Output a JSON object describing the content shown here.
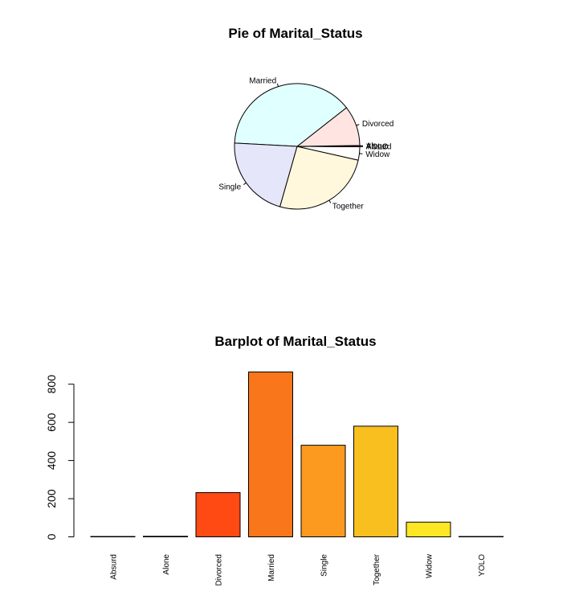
{
  "chart_data": [
    {
      "type": "pie",
      "title": "Pie of Marital_Status",
      "categories": [
        "Absurd",
        "Alone",
        "Divorced",
        "Married",
        "Single",
        "Together",
        "Widow",
        "YOLO"
      ],
      "values": [
        2,
        3,
        232,
        864,
        480,
        580,
        77,
        2
      ],
      "colors": [
        "#f0fff0",
        "#f8f8ff",
        "#ffe4e1",
        "#e0ffff",
        "#e6e6fa",
        "#fff8dc",
        "#ffffff",
        "#fffff0"
      ]
    },
    {
      "type": "bar",
      "title": "Barplot of Marital_Status",
      "categories": [
        "Absurd",
        "Alone",
        "Divorced",
        "Married",
        "Single",
        "Together",
        "Widow",
        "YOLO"
      ],
      "values": [
        2,
        3,
        232,
        864,
        480,
        580,
        77,
        2
      ],
      "ylim": [
        0,
        864
      ],
      "yticks": [
        0,
        200,
        400,
        600,
        800
      ],
      "colors": [
        "#ff0000",
        "#ff2400",
        "#ff4a14",
        "#f9761a",
        "#fb9a1e",
        "#f8bf1f",
        "#fde624",
        "#ffff60"
      ]
    }
  ]
}
